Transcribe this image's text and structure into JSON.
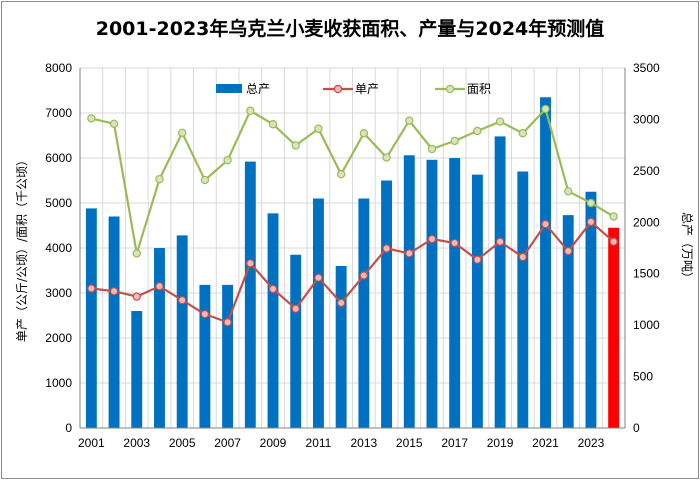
{
  "chart_data": {
    "type": "bar+line",
    "title": "2001-2023年乌克兰小麦收获面积、产量与2024年预测值",
    "x": [
      2001,
      2002,
      2003,
      2004,
      2005,
      2006,
      2007,
      2008,
      2009,
      2010,
      2011,
      2012,
      2013,
      2014,
      2015,
      2016,
      2017,
      2018,
      2019,
      2020,
      2021,
      2022,
      2023,
      2024
    ],
    "x_tick_labels": [
      "2001",
      "2003",
      "2005",
      "2007",
      "2009",
      "2011",
      "2013",
      "2015",
      "2017",
      "2019",
      "2021",
      "2023"
    ],
    "y_left_label": "单产（公斤/公顷）/面积（千公顷）",
    "y_right_label": "总产（万吨）",
    "y_left_lim": [
      0,
      8000
    ],
    "y_left_ticks": [
      0,
      1000,
      2000,
      3000,
      4000,
      5000,
      6000,
      7000,
      8000
    ],
    "y_right_lim": [
      0,
      3500
    ],
    "y_right_ticks": [
      0,
      500,
      1000,
      1500,
      2000,
      2500,
      3000,
      3500
    ],
    "series": [
      {
        "name": "总产",
        "type": "bar",
        "axis": "left",
        "color": "#0070c0",
        "forecast_color": "#ff0000",
        "forecast_index": 23,
        "values": [
          4880,
          4700,
          2600,
          4000,
          4280,
          3180,
          3180,
          5920,
          4770,
          3850,
          5100,
          3600,
          5100,
          5500,
          6060,
          5960,
          6000,
          5630,
          6480,
          5700,
          7350,
          4730,
          5250,
          4450
        ]
      },
      {
        "name": "单产",
        "type": "line",
        "axis": "left",
        "color": "#c0504d",
        "values": [
          3100,
          3040,
          2920,
          3150,
          2840,
          2530,
          2350,
          3660,
          3090,
          2650,
          3340,
          2780,
          3390,
          3990,
          3880,
          4200,
          4110,
          3740,
          4140,
          3800,
          4530,
          3930,
          4580,
          4140
        ]
      },
      {
        "name": "面积",
        "type": "line",
        "axis": "left",
        "color": "#9bbb59",
        "values": [
          6880,
          6760,
          3880,
          5530,
          6560,
          5510,
          5950,
          7050,
          6750,
          6280,
          6650,
          5640,
          6550,
          6010,
          6830,
          6200,
          6380,
          6600,
          6810,
          6550,
          7090,
          5260,
          5000,
          4700
        ]
      }
    ],
    "legend": [
      "总产",
      "单产",
      "面积"
    ]
  }
}
